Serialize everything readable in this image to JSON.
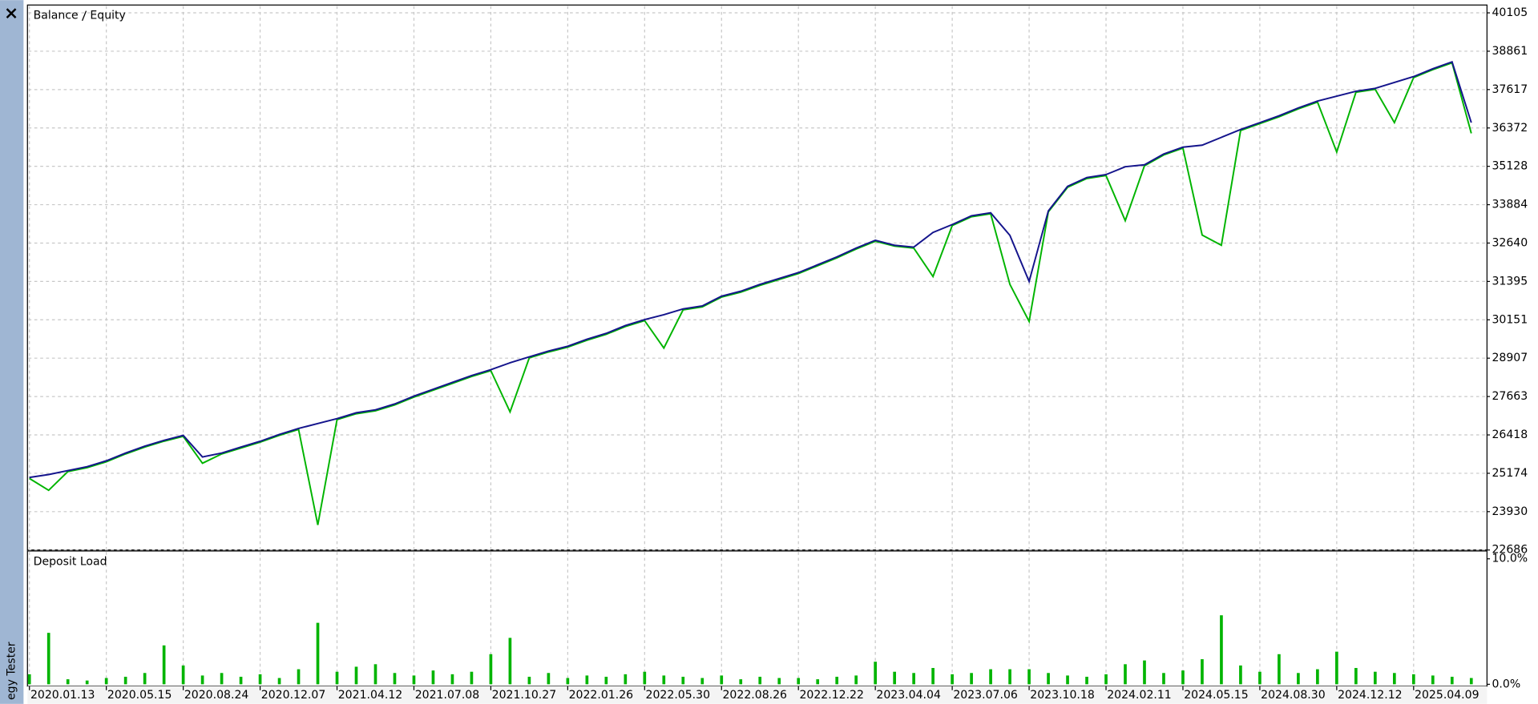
{
  "sidebar": {
    "label": "egy Tester"
  },
  "chart_data": [
    {
      "type": "line",
      "categories": [
        "2020.01.13",
        null,
        null,
        null,
        "2020.05.15",
        null,
        null,
        null,
        "2020.08.24",
        null,
        null,
        null,
        "2020.12.07",
        null,
        null,
        null,
        "2021.04.12",
        null,
        null,
        null,
        "2021.07.08",
        null,
        null,
        null,
        "2021.10.27",
        null,
        null,
        null,
        "2022.01.26",
        null,
        null,
        null,
        "2022.05.30",
        null,
        null,
        null,
        "2022.08.26",
        null,
        null,
        null,
        "2022.12.22",
        null,
        null,
        null,
        "2023.04.04",
        null,
        null,
        null,
        "2023.07.06",
        null,
        null,
        null,
        "2023.10.18",
        null,
        null,
        null,
        "2024.02.11",
        null,
        null,
        null,
        "2024.05.15",
        null,
        null,
        null,
        "2024.08.30",
        null,
        null,
        null,
        "2024.12.12",
        null,
        null,
        null,
        "2025.04.09",
        null,
        null,
        null
      ],
      "series": [
        {
          "name": "Balance",
          "color": "#14148c",
          "values": [
            25037,
            25132,
            25260,
            25387,
            25577,
            25831,
            26053,
            26244,
            26403,
            25704,
            25831,
            26022,
            26212,
            26435,
            26626,
            26785,
            26944,
            27135,
            27230,
            27421,
            27675,
            27898,
            28120,
            28343,
            28534,
            28756,
            28947,
            29138,
            29296,
            29519,
            29710,
            29964,
            30155,
            30314,
            30504,
            30600,
            30918,
            31077,
            31299,
            31490,
            31680,
            31935,
            32189,
            32475,
            32729,
            32570,
            32507,
            32984,
            33238,
            33524,
            33620,
            32889,
            31395,
            33683,
            34478,
            34764,
            34859,
            35113,
            35177,
            35527,
            35749,
            35813,
            36067,
            36322,
            36544,
            36767,
            37021,
            37244,
            37402,
            37561,
            37656,
            37847,
            38038,
            38293,
            38515,
            36544
          ]
        },
        {
          "name": "Equity",
          "color": "#00b400",
          "values": [
            25007,
            24623,
            25230,
            25357,
            25547,
            25801,
            26023,
            26214,
            26373,
            25500,
            25801,
            25992,
            26182,
            26405,
            26596,
            23500,
            26914,
            27105,
            27200,
            27391,
            27645,
            27868,
            28090,
            28313,
            28504,
            27166,
            28917,
            29108,
            29266,
            29489,
            29680,
            29934,
            30125,
            29233,
            30474,
            30570,
            30888,
            31047,
            31269,
            31460,
            31650,
            31905,
            32159,
            32445,
            32699,
            32540,
            32477,
            31553,
            33208,
            33494,
            33590,
            31300,
            30100,
            33653,
            34448,
            34734,
            34829,
            33366,
            35147,
            35497,
            35719,
            32900,
            32570,
            36292,
            36514,
            36737,
            36991,
            37214,
            35591,
            37531,
            37626,
            36544,
            38008,
            38263,
            38485,
            36200
          ]
        }
      ],
      "ylim": [
        22686,
        40105
      ],
      "yticks": [
        22686,
        23930,
        25174,
        26418,
        27663,
        28907,
        30151,
        31395,
        32640,
        33884,
        35128,
        36372,
        37617,
        38861,
        40105
      ],
      "grid": true
    },
    {
      "type": "bar",
      "title": "Deposit Load",
      "color": "#00b400",
      "values": [
        0.8,
        4.1,
        0.4,
        0.3,
        0.5,
        0.6,
        0.9,
        3.1,
        1.5,
        0.7,
        0.9,
        0.6,
        0.8,
        0.5,
        1.2,
        4.9,
        1.0,
        1.4,
        1.6,
        0.9,
        0.7,
        1.1,
        0.8,
        1.0,
        2.4,
        3.7,
        0.6,
        0.9,
        0.5,
        0.7,
        0.6,
        0.8,
        1.0,
        0.7,
        0.6,
        0.5,
        0.7,
        0.4,
        0.6,
        0.5,
        0.5,
        0.4,
        0.6,
        0.7,
        1.8,
        1.0,
        0.9,
        1.3,
        0.8,
        0.9,
        1.2,
        1.2,
        1.2,
        0.9,
        0.7,
        0.6,
        0.8,
        1.6,
        1.9,
        0.9,
        1.1,
        2.0,
        5.5,
        1.5,
        1.0,
        2.4,
        0.9,
        1.2,
        2.6,
        1.3,
        1.0,
        0.9,
        0.8,
        0.7,
        0.6,
        0.5
      ],
      "ylim": [
        0,
        10
      ],
      "yticks": [
        {
          "value": 0,
          "label": "0.0%"
        },
        {
          "value": 10,
          "label": "10.0%"
        }
      ],
      "grid": true
    }
  ]
}
